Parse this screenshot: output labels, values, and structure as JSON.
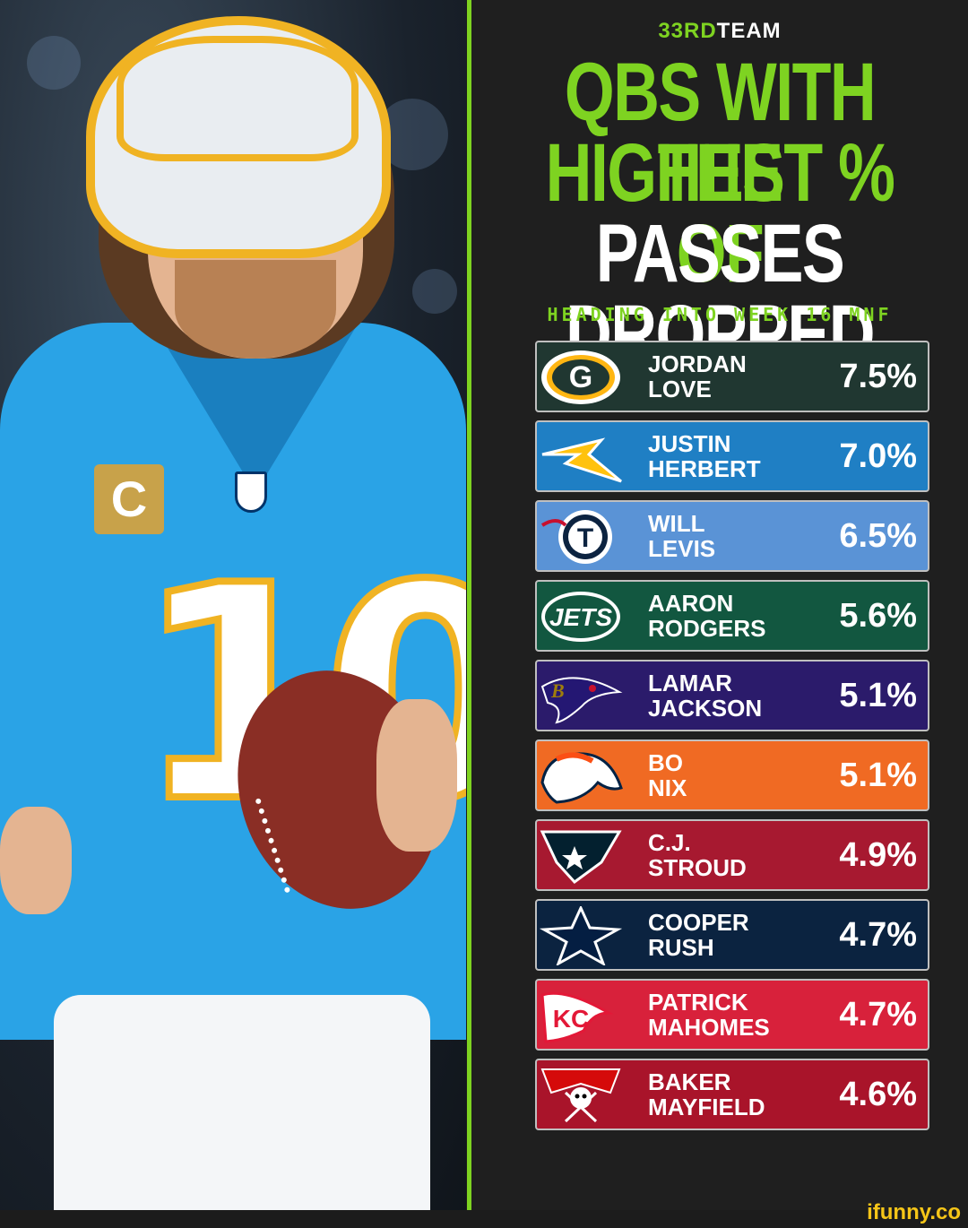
{
  "brand": {
    "prefix": "33RD",
    "suffix": "TEAM"
  },
  "headline": {
    "line1": "QBS WITH THE",
    "line2": "HIGHEST % OF",
    "line3": "PASSES DROPPED"
  },
  "subhead": "HEADING INTO WEEK 16 MNF",
  "rows": [
    {
      "first": "JORDAN",
      "last": "LOVE",
      "pct": "7.5%",
      "team_icon": "packers-logo-icon",
      "color": "#203731"
    },
    {
      "first": "JUSTIN",
      "last": "HERBERT",
      "pct": "7.0%",
      "team_icon": "chargers-logo-icon",
      "color": "#1f7fc4"
    },
    {
      "first": "WILL",
      "last": "LEVIS",
      "pct": "6.5%",
      "team_icon": "titans-logo-icon",
      "color": "#5a93d6"
    },
    {
      "first": "AARON",
      "last": "RODGERS",
      "pct": "5.6%",
      "team_icon": "jets-logo-icon",
      "color": "#125740"
    },
    {
      "first": "LAMAR",
      "last": "JACKSON",
      "pct": "5.1%",
      "team_icon": "ravens-logo-icon",
      "color": "#2b1b6b"
    },
    {
      "first": "BO",
      "last": "NIX",
      "pct": "5.1%",
      "team_icon": "broncos-logo-icon",
      "color": "#f06a23"
    },
    {
      "first": "C.J.",
      "last": "STROUD",
      "pct": "4.9%",
      "team_icon": "texans-logo-icon",
      "color": "#a71930"
    },
    {
      "first": "COOPER",
      "last": "RUSH",
      "pct": "4.7%",
      "team_icon": "cowboys-logo-icon",
      "color": "#0b2340"
    },
    {
      "first": "PATRICK",
      "last": "MAHOMES",
      "pct": "4.7%",
      "team_icon": "chiefs-logo-icon",
      "color": "#d8213b"
    },
    {
      "first": "BAKER",
      "last": "MAYFIELD",
      "pct": "4.6%",
      "team_icon": "buccaneers-logo-icon",
      "color": "#a9142a"
    }
  ],
  "watermark": "ifunny.co"
}
